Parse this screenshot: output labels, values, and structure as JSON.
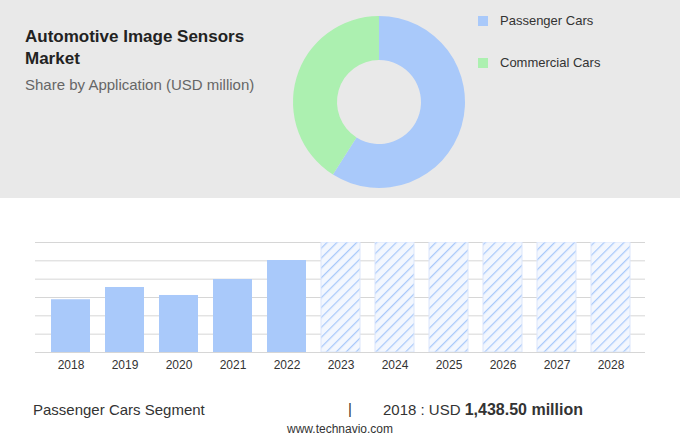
{
  "chart_data": [
    {
      "type": "donut",
      "title": "Automotive Image Sensors Market",
      "subtitle": "Share by Application (USD million)",
      "categories": [
        "Passenger Cars",
        "Commercial Cars"
      ],
      "values": [
        59,
        41
      ],
      "colors": [
        "#a9c9fa",
        "#acf0b0"
      ],
      "legend": "top-right"
    },
    {
      "type": "bar",
      "categories": [
        "2018",
        "2019",
        "2020",
        "2021",
        "2022",
        "2023",
        "2024",
        "2025",
        "2026",
        "2027",
        "2028"
      ],
      "values": [
        1438.5,
        1773,
        1555,
        1991,
        2509,
        null,
        null,
        null,
        null,
        null,
        null
      ],
      "color": "#a9c9fa",
      "ylim": [
        0,
        3000
      ],
      "yticks": [
        0,
        500,
        1000,
        1500,
        2000,
        2500,
        3000
      ],
      "grid": true,
      "tick_labels": "x"
    }
  ],
  "footer": {
    "segment": "Passenger Cars Segment",
    "separator": "|",
    "label": "2018 : USD",
    "value": "1,438.50 million",
    "source": "www.technavio.com"
  }
}
